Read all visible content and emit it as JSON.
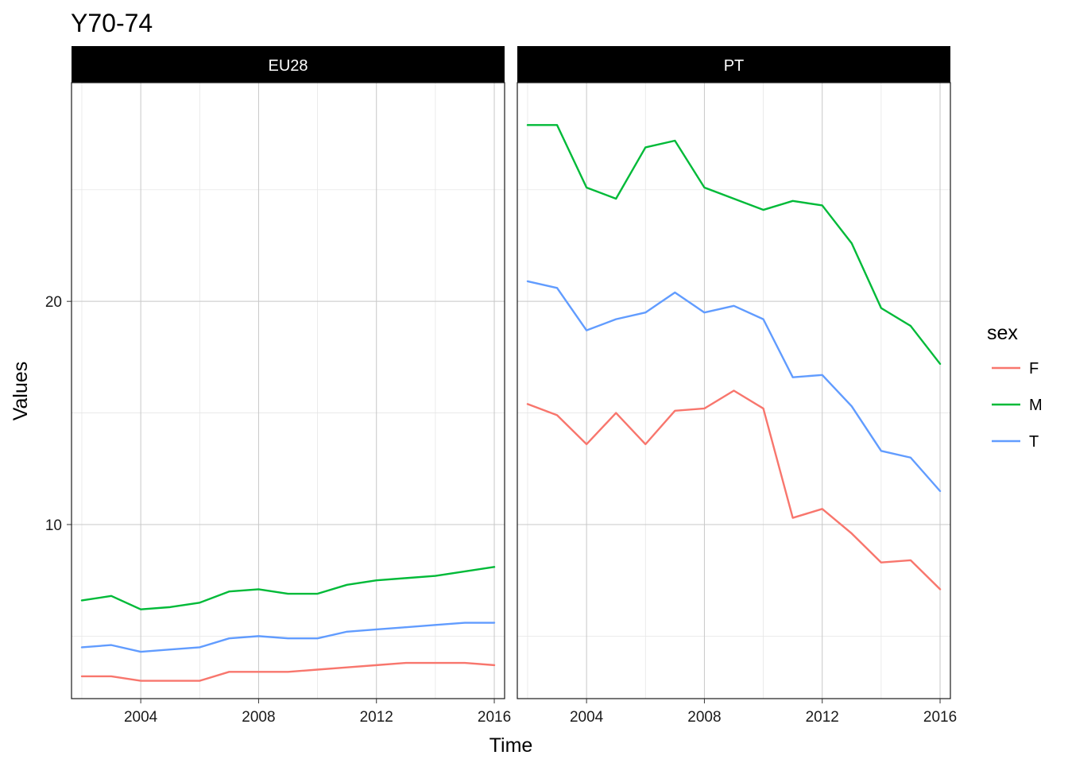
{
  "chart_data": {
    "type": "line",
    "title": "Y70-74",
    "xlabel": "Time",
    "ylabel": "Values",
    "legend_title": "sex",
    "legend_position": "right",
    "grid": true,
    "xlim": [
      2001.65,
      2016.35
    ],
    "ylim": [
      2.2,
      29.8
    ],
    "x_ticks": [
      2004,
      2008,
      2012,
      2016
    ],
    "x_tick_labels": [
      "2004",
      "2008",
      "2012",
      "2016"
    ],
    "y_ticks": [
      10,
      20
    ],
    "y_tick_labels": [
      "10",
      "20"
    ],
    "x": [
      2002,
      2003,
      2004,
      2005,
      2006,
      2007,
      2008,
      2009,
      2010,
      2011,
      2012,
      2013,
      2014,
      2015,
      2016
    ],
    "legend": [
      {
        "key": "F",
        "color": "#F8766D"
      },
      {
        "key": "M",
        "color": "#00BA38"
      },
      {
        "key": "T",
        "color": "#619CFF"
      }
    ],
    "panels": [
      {
        "strip": "EU28",
        "series": [
          {
            "name": "F",
            "color": "#F8766D",
            "values": [
              3.2,
              3.2,
              3.0,
              3.0,
              3.0,
              3.4,
              3.4,
              3.4,
              3.5,
              3.6,
              3.7,
              3.8,
              3.8,
              3.8,
              3.7
            ]
          },
          {
            "name": "M",
            "color": "#00BA38",
            "values": [
              6.6,
              6.8,
              6.2,
              6.3,
              6.5,
              7.0,
              7.1,
              6.9,
              6.9,
              7.3,
              7.5,
              7.6,
              7.7,
              7.9,
              8.1
            ]
          },
          {
            "name": "T",
            "color": "#619CFF",
            "values": [
              4.5,
              4.6,
              4.3,
              4.4,
              4.5,
              4.9,
              5.0,
              4.9,
              4.9,
              5.2,
              5.3,
              5.4,
              5.5,
              5.6,
              5.6
            ]
          }
        ]
      },
      {
        "strip": "PT",
        "series": [
          {
            "name": "F",
            "color": "#F8766D",
            "values": [
              15.4,
              14.9,
              13.6,
              15.0,
              13.6,
              15.1,
              15.2,
              16.0,
              15.2,
              10.3,
              10.7,
              9.6,
              8.3,
              8.4,
              7.1
            ]
          },
          {
            "name": "M",
            "color": "#00BA38",
            "values": [
              27.9,
              27.9,
              25.1,
              24.6,
              26.9,
              27.2,
              25.1,
              24.6,
              24.1,
              24.5,
              24.3,
              22.6,
              19.7,
              18.9,
              17.2
            ]
          },
          {
            "name": "T",
            "color": "#619CFF",
            "values": [
              20.9,
              20.6,
              18.7,
              19.2,
              19.5,
              20.4,
              19.5,
              19.8,
              19.2,
              16.6,
              16.7,
              15.3,
              13.3,
              13.0,
              11.5
            ]
          }
        ]
      }
    ]
  }
}
